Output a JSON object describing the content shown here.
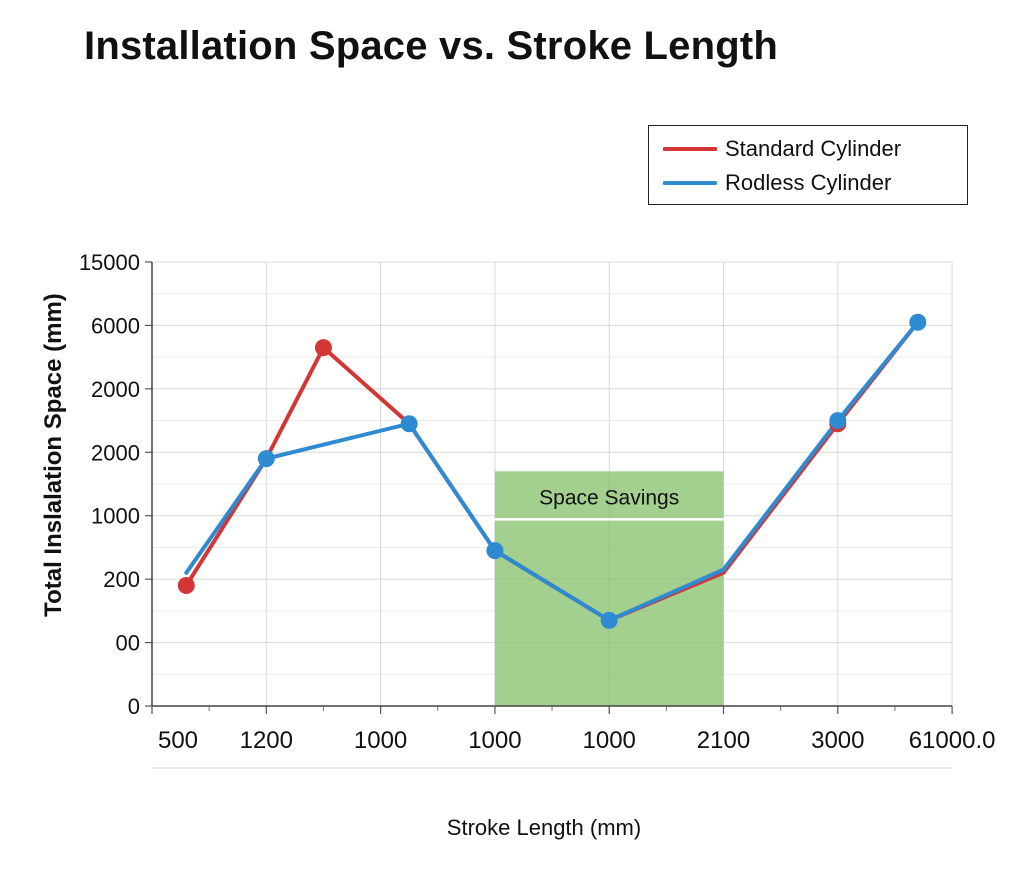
{
  "chart_data": {
    "type": "line",
    "title": "Installation Space vs. Stroke Length",
    "xlabel": "Stroke Length (mm)",
    "ylabel": "Total Inslalation Space (mm)",
    "x_tick_labels": [
      "500",
      "1200",
      "1000",
      "1000",
      "1000",
      "2100",
      "3000",
      "61000.0"
    ],
    "y_tick_labels": [
      "0",
      "00",
      "200",
      "1000",
      "2000",
      "2000",
      "6000",
      "15000"
    ],
    "ylim": [
      0,
      7
    ],
    "grid": true,
    "legend_position": "top-right",
    "annotation": {
      "label": "Space Savings",
      "x_range": [
        3,
        5
      ],
      "y_top": 3.7,
      "color": "#86c06a"
    },
    "series": [
      {
        "name": "Standard Cylinder",
        "color": "#d43535",
        "x": [
          0.3,
          1.0,
          1.5,
          2.25,
          3.0,
          4.0,
          5.0,
          6.0,
          6.7
        ],
        "y": [
          1.9,
          3.9,
          5.65,
          4.45,
          2.45,
          1.35,
          2.1,
          4.45,
          6.05
        ],
        "markers": [
          0,
          2,
          7
        ]
      },
      {
        "name": "Rodless Cylinder",
        "color": "#2f8bd1",
        "x": [
          0.3,
          1.0,
          2.25,
          3.0,
          4.0,
          5.0,
          6.0,
          6.7
        ],
        "y": [
          2.1,
          3.9,
          4.45,
          2.45,
          1.35,
          2.15,
          4.5,
          6.05
        ],
        "markers": [
          1,
          2,
          3,
          4,
          6,
          7
        ]
      }
    ]
  }
}
